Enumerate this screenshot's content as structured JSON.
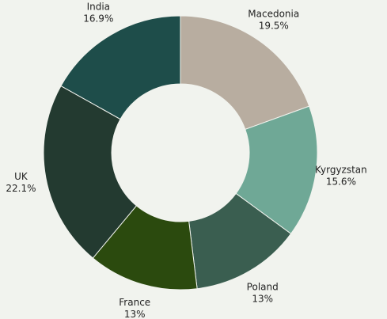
{
  "chart_data": {
    "type": "donut",
    "categories": [
      "Macedonia",
      "Kyrgyzstan",
      "Poland",
      "France",
      "UK",
      "India"
    ],
    "values": [
      19.5,
      15.6,
      13,
      13,
      22.1,
      16.9
    ],
    "value_labels": [
      "19.5%",
      "15.6%",
      "13%",
      "13%",
      "22.1%",
      "16.9%"
    ],
    "colors": [
      "#b8ada0",
      "#6fa896",
      "#3a5e50",
      "#2b4a0e",
      "#233a30",
      "#1e4d4a"
    ]
  }
}
